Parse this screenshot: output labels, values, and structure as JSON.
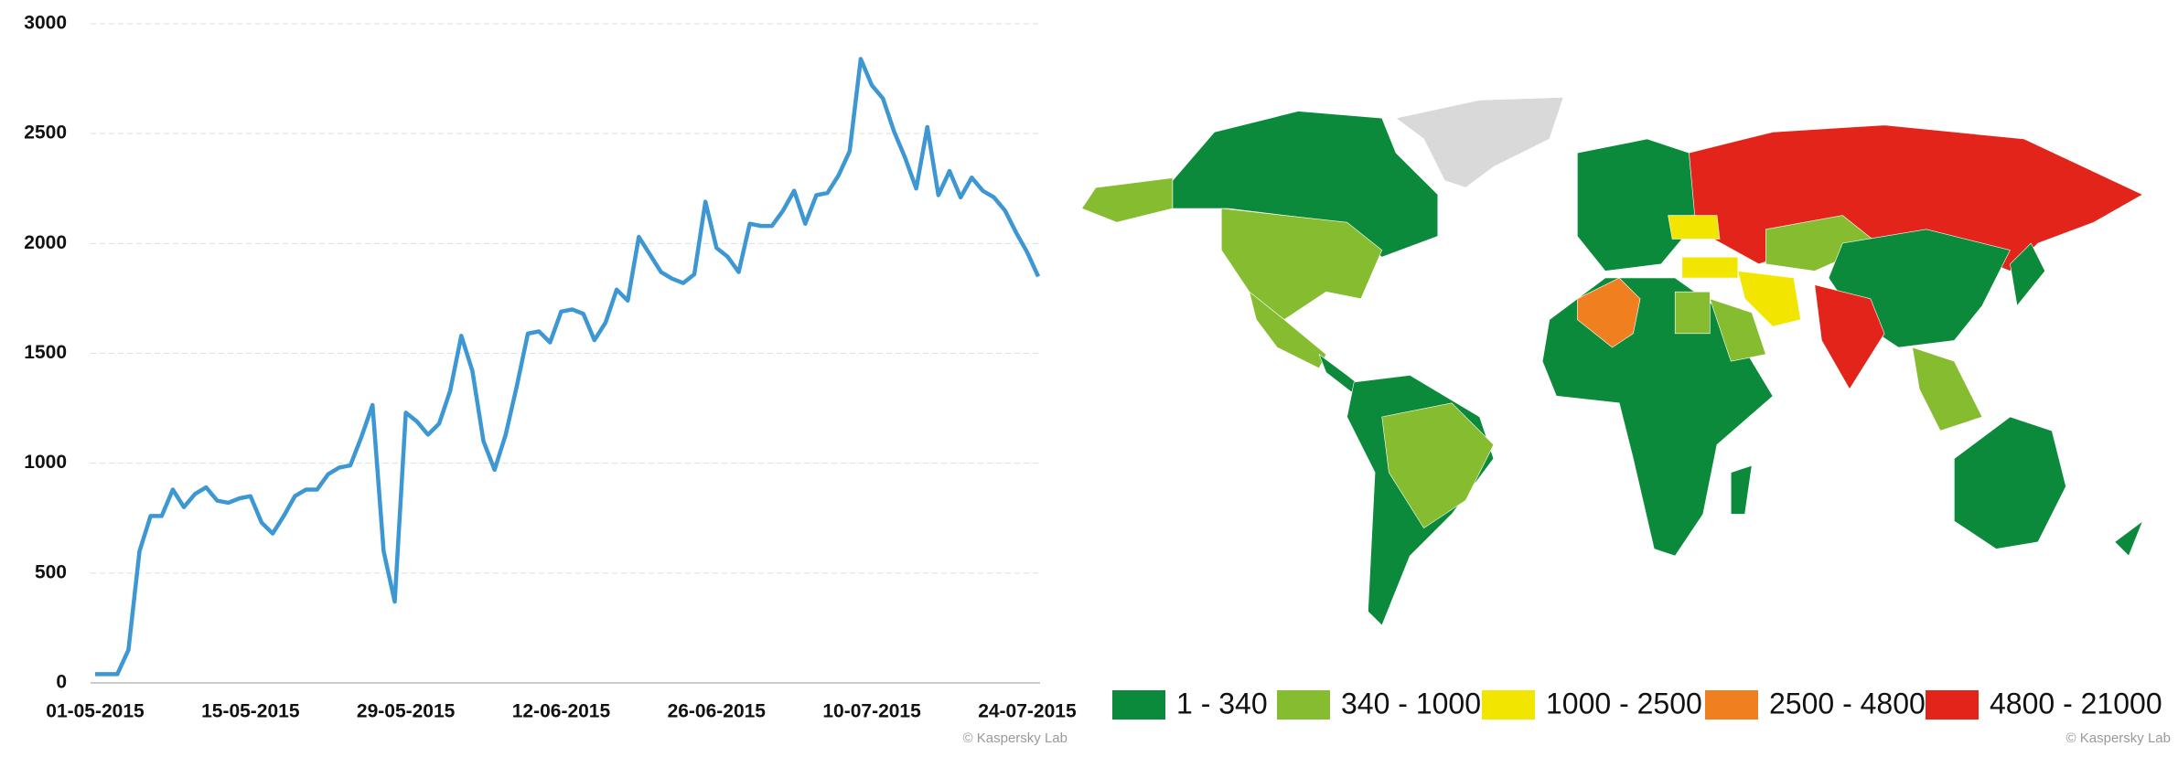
{
  "chart_data": {
    "type": "line",
    "categories": [
      "01-05-2015",
      null,
      null,
      null,
      null,
      null,
      null,
      null,
      null,
      null,
      null,
      null,
      null,
      null,
      "15-05-2015",
      null,
      null,
      null,
      null,
      null,
      null,
      null,
      null,
      null,
      null,
      null,
      null,
      null,
      "29-05-2015",
      null,
      null,
      null,
      null,
      null,
      null,
      null,
      null,
      null,
      null,
      null,
      null,
      null,
      "12-06-2015",
      null,
      null,
      null,
      null,
      null,
      null,
      null,
      null,
      null,
      null,
      null,
      null,
      null,
      "26-06-2015",
      null,
      null,
      null,
      null,
      null,
      null,
      null,
      null,
      null,
      null,
      null,
      null,
      null,
      "10-07-2015",
      null,
      null,
      null,
      null,
      null,
      null,
      null,
      null,
      null,
      null,
      null,
      null,
      null,
      "24-07-2015",
      null
    ],
    "series": [
      {
        "color": "#3d97d3",
        "values": [
          40,
          40,
          40,
          150,
          600,
          760,
          760,
          880,
          800,
          860,
          890,
          830,
          820,
          840,
          850,
          730,
          680,
          760,
          850,
          880,
          880,
          950,
          980,
          990,
          1120,
          1265,
          600,
          370,
          1230,
          1190,
          1130,
          1180,
          1330,
          1580,
          1420,
          1100,
          970,
          1130,
          1350,
          1590,
          1600,
          1550,
          1690,
          1700,
          1680,
          1560,
          1640,
          1790,
          1740,
          2030,
          1950,
          1870,
          1840,
          1820,
          1860,
          2190,
          1980,
          1940,
          1870,
          2090,
          2080,
          2080,
          2150,
          2240,
          2090,
          2220,
          2230,
          2310,
          2420,
          2840,
          2720,
          2660,
          2510,
          2390,
          2250,
          2530,
          2220,
          2330,
          2210,
          2300,
          2240,
          2210,
          2150,
          2050,
          1960,
          1850
        ]
      }
    ],
    "ylim": [
      0,
      3000
    ],
    "yticks": [
      0,
      500,
      1000,
      1500,
      2000,
      2500,
      3000
    ],
    "grid": true,
    "watermark": "© Kaspersky Lab"
  },
  "map": {
    "legend": [
      {
        "label": "1 - 340",
        "color": "#0b8a3b"
      },
      {
        "label": "340 - 1000",
        "color": "#86bc2f"
      },
      {
        "label": "1000 - 2500",
        "color": "#f2e600"
      },
      {
        "label": "2500 - 4800",
        "color": "#f0801f"
      },
      {
        "label": "4800 - 21000",
        "color": "#e2241b"
      }
    ],
    "watermark": "© Kaspersky Lab"
  }
}
